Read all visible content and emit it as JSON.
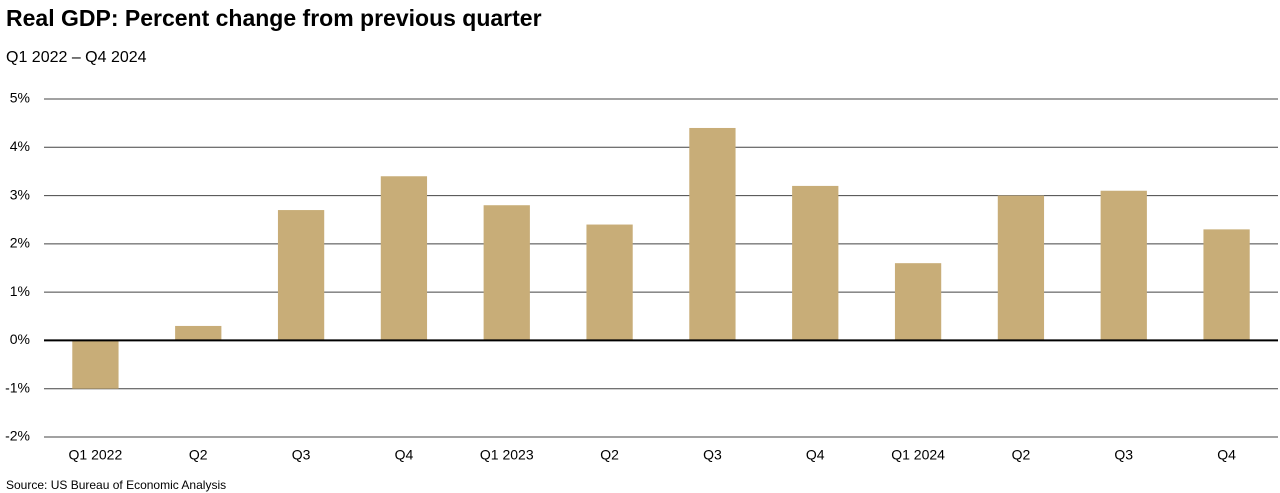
{
  "chart_data": {
    "type": "bar",
    "title": "Real GDP: Percent change from previous quarter",
    "subtitle": "Q1 2022 – Q4 2024",
    "source": "Source: US Bureau of Economic Analysis",
    "categories": [
      "Q1 2022",
      "Q2",
      "Q3",
      "Q4",
      "Q1 2023",
      "Q2",
      "Q3",
      "Q4",
      "Q1 2024",
      "Q2",
      "Q3",
      "Q4"
    ],
    "values": [
      -1.0,
      0.3,
      2.7,
      3.4,
      2.8,
      2.4,
      4.4,
      3.2,
      1.6,
      3.0,
      3.1,
      2.3
    ],
    "color": "#c8ad78",
    "ylim": [
      -2,
      5
    ],
    "yticks": [
      {
        "value": -2,
        "label": "-2%"
      },
      {
        "value": -1,
        "label": "-1%"
      },
      {
        "value": 0,
        "label": "0%"
      },
      {
        "value": 1,
        "label": "1%"
      },
      {
        "value": 2,
        "label": "2%"
      },
      {
        "value": 3,
        "label": "3%"
      },
      {
        "value": 4,
        "label": "4%"
      },
      {
        "value": 5,
        "label": "5%"
      }
    ],
    "grid": true
  }
}
